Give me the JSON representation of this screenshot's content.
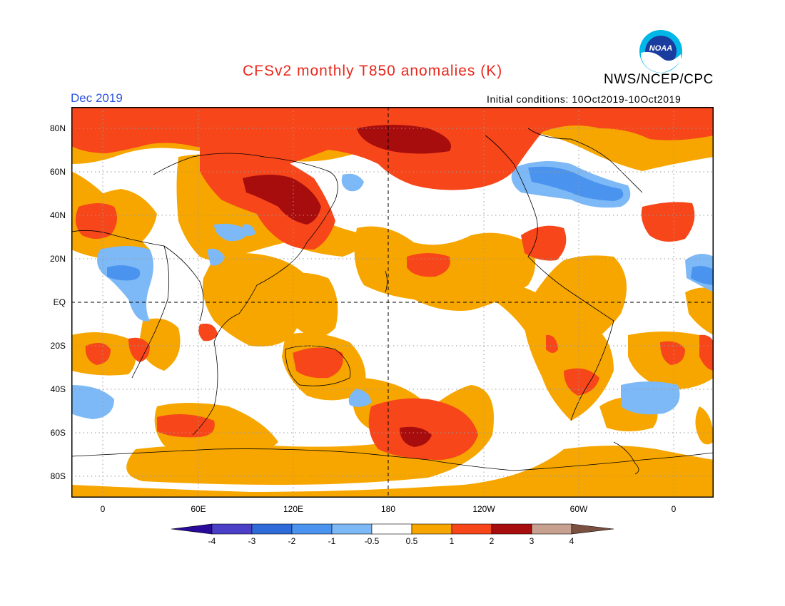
{
  "title": "CFSv2 monthly T850 anomalies (K)",
  "agency": "NWS/NCEP/CPC",
  "logo_text": "NOAA",
  "month": "Dec 2019",
  "init_conditions": "Initial conditions: 10Oct2019-10Oct2019",
  "lat_labels": [
    "80N",
    "60N",
    "40N",
    "20N",
    "EQ",
    "20S",
    "40S",
    "60S",
    "80S"
  ],
  "lon_labels": [
    "0",
    "60E",
    "120E",
    "180",
    "120W",
    "60W",
    "0"
  ],
  "colorbar": {
    "labels": [
      "-4",
      "-3",
      "-2",
      "-1",
      "-0.5",
      "0.5",
      "1",
      "2",
      "3",
      "4"
    ],
    "colors": [
      "#2a0a9a",
      "#4b3fc8",
      "#2f6bd8",
      "#4a94ef",
      "#7db9f6",
      "#ffffff",
      "#f7a600",
      "#f6461a",
      "#a80d0d",
      "#c8a090",
      "#7a5040"
    ]
  },
  "colors": {
    "title": "#e8281c",
    "month": "#2e55e0",
    "light_warm": "#f7a600",
    "warm": "#f6461a",
    "hot": "#a80d0d",
    "cool": "#7db9f6",
    "cold": "#4a94ef"
  }
}
